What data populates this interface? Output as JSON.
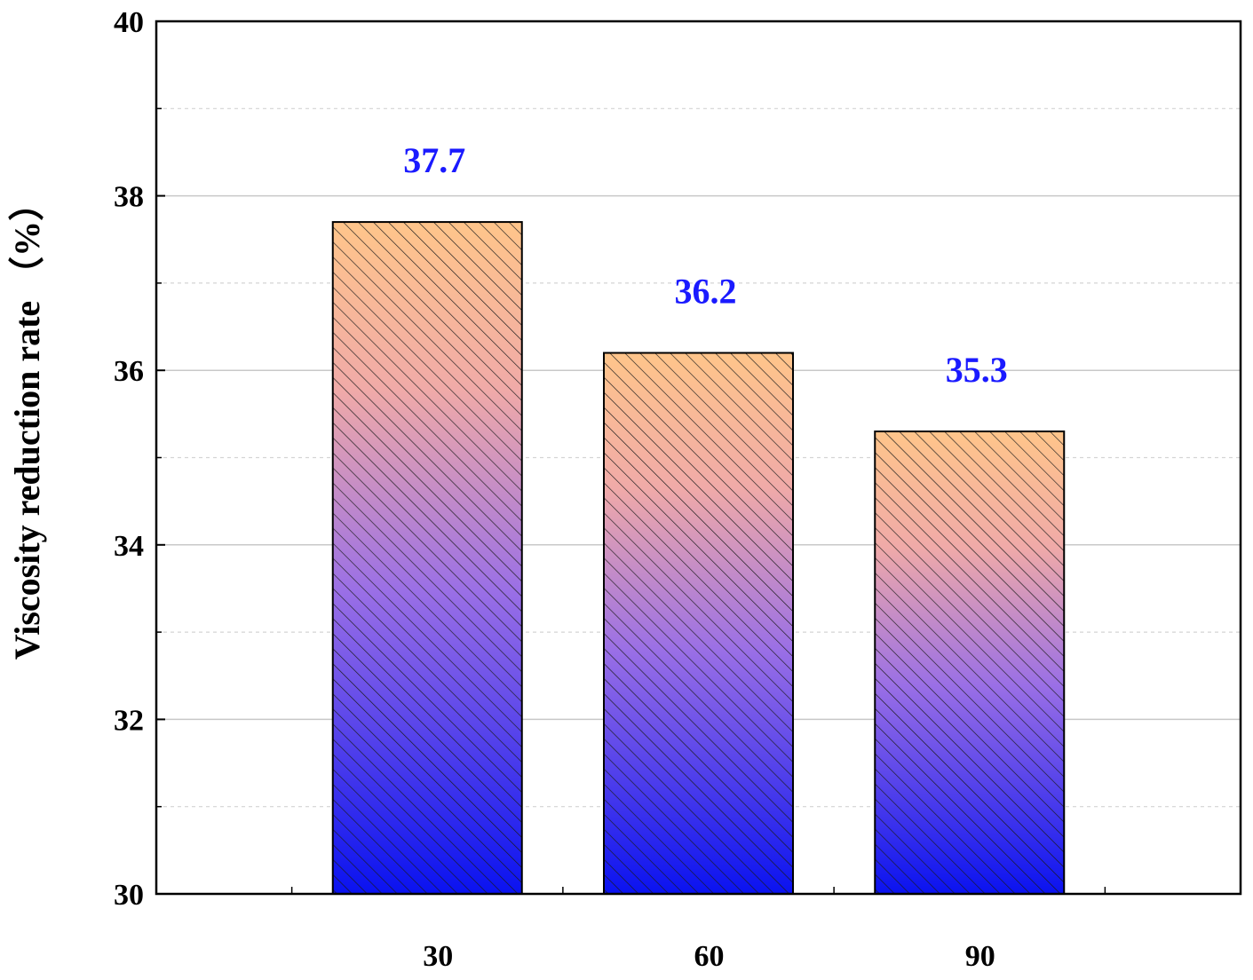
{
  "chart_data": {
    "type": "bar",
    "title": "",
    "xlabel": "",
    "ylabel": "Viscosity reduction rate （%）",
    "categories": [
      "30",
      "60",
      "90"
    ],
    "values": [
      37.7,
      36.2,
      35.3
    ],
    "data_labels": [
      "37.7",
      "36.2",
      "35.3"
    ],
    "ylim": [
      30,
      40
    ],
    "yticks": [
      30,
      32,
      34,
      36,
      38,
      40
    ],
    "ytick_labels": [
      "30",
      "32",
      "34",
      "36",
      "38",
      "40"
    ],
    "minor_yticks": [
      31,
      33,
      35,
      37,
      39
    ],
    "grid": true,
    "legend": "none",
    "colors": {
      "bar_gradient_top": "#ffc58a",
      "bar_gradient_mid": "#9a6fe6",
      "bar_gradient_bottom": "#0a12f0",
      "hatch": "#1a1a1a",
      "data_label": "#1a1aff",
      "grid_major": "#c8c8c8",
      "grid_minor": "#d4d4d4"
    }
  }
}
